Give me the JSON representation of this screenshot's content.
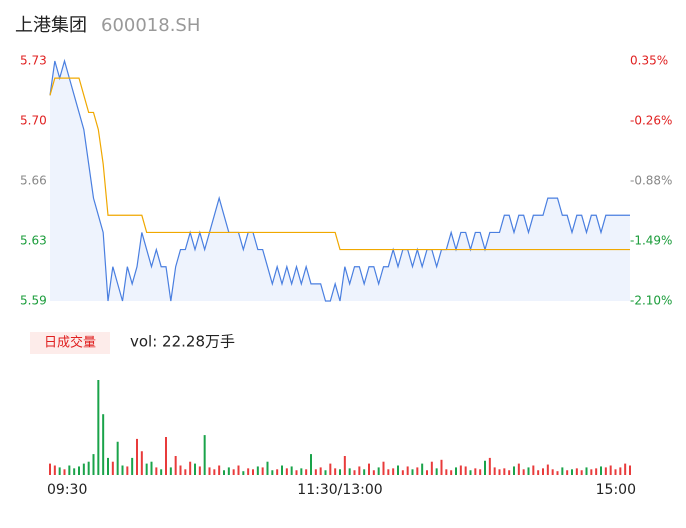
{
  "chart_data": {
    "type": "line",
    "title": "上港集团",
    "subtitle": "600018.SH",
    "x_labels": [
      "09:30",
      "11:30/13:00",
      "15:00"
    ],
    "ylim": [
      5.59,
      5.73
    ],
    "yticks": [
      5.59,
      {
        "value": 5.625,
        "label": "5.63"
      },
      5.66,
      {
        "value": 5.695,
        "label": "5.70"
      },
      5.73
    ],
    "y2lim": [
      -2.1,
      0.35
    ],
    "y2ticks": [
      {
        "value": -2.1,
        "label": "-2.10%"
      },
      {
        "value": -1.4875,
        "label": "-1.49%"
      },
      {
        "value": -0.875,
        "label": "-0.88%"
      },
      {
        "value": -0.2625,
        "label": "-0.26%"
      },
      {
        "value": 0.35,
        "label": "0.35%"
      }
    ],
    "tick_colors": [
      "#1a9c3a",
      "#1a9c3a",
      "#888888",
      "#e02020",
      "#e02020"
    ],
    "series": [
      {
        "color": "#4a7fe0",
        "values": [
          5.71,
          5.73,
          5.72,
          5.73,
          5.72,
          5.71,
          5.7,
          5.69,
          5.67,
          5.65,
          5.64,
          5.63,
          5.59,
          5.61,
          5.6,
          5.59,
          5.61,
          5.6,
          5.61,
          5.63,
          5.62,
          5.61,
          5.62,
          5.61,
          5.61,
          5.59,
          5.61,
          5.62,
          5.62,
          5.63,
          5.62,
          5.63,
          5.62,
          5.63,
          5.64,
          5.65,
          5.64,
          5.63,
          5.63,
          5.63,
          5.62,
          5.63,
          5.63,
          5.62,
          5.62,
          5.61,
          5.6,
          5.61,
          5.6,
          5.61,
          5.6,
          5.61,
          5.6,
          5.61,
          5.6,
          5.6,
          5.6,
          5.59,
          5.59,
          5.6,
          5.59,
          5.61,
          5.6,
          5.61,
          5.61,
          5.6,
          5.61,
          5.61,
          5.6,
          5.61,
          5.61,
          5.62,
          5.61,
          5.62,
          5.62,
          5.61,
          5.62,
          5.61,
          5.62,
          5.62,
          5.61,
          5.62,
          5.62,
          5.63,
          5.62,
          5.63,
          5.63,
          5.62,
          5.63,
          5.63,
          5.62,
          5.63,
          5.63,
          5.63,
          5.64,
          5.64,
          5.63,
          5.64,
          5.64,
          5.63,
          5.64,
          5.64,
          5.64,
          5.65,
          5.65,
          5.65,
          5.64,
          5.64,
          5.63,
          5.64,
          5.64,
          5.63,
          5.64,
          5.64,
          5.63,
          5.64,
          5.64,
          5.64,
          5.64,
          5.64,
          5.64
        ]
      },
      {
        "color": "#f0a800",
        "values": [
          5.71,
          5.72,
          5.72,
          5.72,
          5.72,
          5.72,
          5.72,
          5.71,
          5.7,
          5.7,
          5.69,
          5.67,
          5.64,
          5.64,
          5.64,
          5.64,
          5.64,
          5.64,
          5.64,
          5.64,
          5.63,
          5.63,
          5.63,
          5.63,
          5.63,
          5.63,
          5.63,
          5.63,
          5.63,
          5.63,
          5.63,
          5.63,
          5.63,
          5.63,
          5.63,
          5.63,
          5.63,
          5.63,
          5.63,
          5.63,
          5.63,
          5.63,
          5.63,
          5.63,
          5.63,
          5.63,
          5.63,
          5.63,
          5.63,
          5.63,
          5.63,
          5.63,
          5.63,
          5.63,
          5.63,
          5.63,
          5.63,
          5.63,
          5.63,
          5.63,
          5.62,
          5.62,
          5.62,
          5.62,
          5.62,
          5.62,
          5.62,
          5.62,
          5.62,
          5.62,
          5.62,
          5.62,
          5.62,
          5.62,
          5.62,
          5.62,
          5.62,
          5.62,
          5.62,
          5.62,
          5.62,
          5.62,
          5.62,
          5.62,
          5.62,
          5.62,
          5.62,
          5.62,
          5.62,
          5.62,
          5.62,
          5.62,
          5.62,
          5.62,
          5.62,
          5.62,
          5.62,
          5.62,
          5.62,
          5.62,
          5.62,
          5.62,
          5.62,
          5.62,
          5.62,
          5.62,
          5.62,
          5.62,
          5.62,
          5.62,
          5.62,
          5.62,
          5.62,
          5.62,
          5.62,
          5.62,
          5.62,
          5.62,
          5.62,
          5.62,
          5.62
        ]
      }
    ],
    "area_color": "#eef3fd",
    "volume_label": "日成交量",
    "volume_text": "vol: 22.28万手",
    "volume": {
      "up_color": "#e83b3b",
      "down_color": "#1aa34a",
      "ylim": [
        0,
        100
      ],
      "values": [
        12,
        10,
        8,
        6,
        10,
        7,
        9,
        12,
        14,
        22,
        100,
        64,
        18,
        14,
        35,
        10,
        9,
        18,
        38,
        25,
        12,
        14,
        8,
        6,
        40,
        8,
        20,
        10,
        6,
        14,
        12,
        9,
        42,
        8,
        6,
        10,
        5,
        8,
        6,
        10,
        4,
        7,
        6,
        9,
        8,
        14,
        5,
        6,
        10,
        7,
        9,
        5,
        7,
        6,
        22,
        6,
        8,
        5,
        12,
        7,
        6,
        20,
        7,
        5,
        9,
        6,
        12,
        5,
        8,
        14,
        6,
        7,
        10,
        5,
        9,
        6,
        8,
        12,
        5,
        14,
        7,
        16,
        6,
        5,
        8,
        10,
        9,
        5,
        7,
        6,
        15,
        18,
        8,
        6,
        7,
        5,
        9,
        12,
        6,
        8,
        10,
        5,
        7,
        11,
        6,
        4,
        8,
        5,
        6,
        7,
        5,
        8,
        6,
        7,
        9,
        8,
        10,
        6,
        8,
        12,
        10
      ]
    }
  }
}
